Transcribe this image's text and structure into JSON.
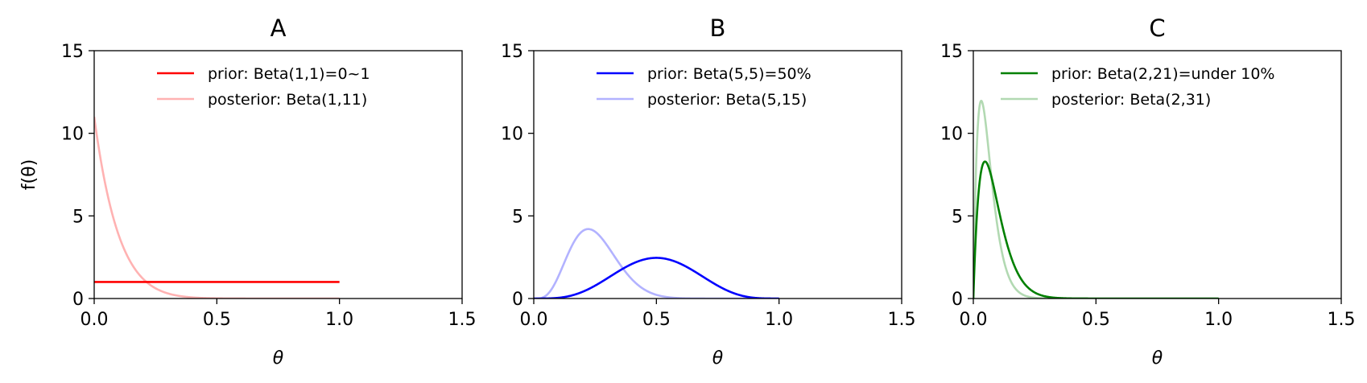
{
  "chart_data": [
    {
      "type": "line",
      "title": "A",
      "xlabel": "θ",
      "ylabel": "f(θ)",
      "xlim": [
        0,
        1.5
      ],
      "ylim": [
        0,
        15
      ],
      "xticks": [
        "0.0",
        "0.5",
        "1.0",
        "1.5"
      ],
      "yticks": [
        "0",
        "5",
        "10",
        "15"
      ],
      "grid": false,
      "legend_position": "top-center",
      "series": [
        {
          "name": "prior: Beta(1,1)=0~1",
          "alpha": 1,
          "beta": 1,
          "color": "#ff0000",
          "opacity": 1.0
        },
        {
          "name": "posterior: Beta(1,11)",
          "alpha": 1,
          "beta": 11,
          "color": "#ff0000",
          "opacity": 0.3
        }
      ]
    },
    {
      "type": "line",
      "title": "B",
      "xlabel": "θ",
      "ylabel": "",
      "xlim": [
        0,
        1.5
      ],
      "ylim": [
        0,
        15
      ],
      "xticks": [
        "0.0",
        "0.5",
        "1.0",
        "1.5"
      ],
      "yticks": [
        "0",
        "5",
        "10",
        "15"
      ],
      "grid": false,
      "legend_position": "top-center",
      "series": [
        {
          "name": "prior: Beta(5,5)=50%",
          "alpha": 5,
          "beta": 5,
          "color": "#0000ff",
          "opacity": 1.0
        },
        {
          "name": "posterior: Beta(5,15)",
          "alpha": 5,
          "beta": 15,
          "color": "#0000ff",
          "opacity": 0.3
        }
      ]
    },
    {
      "type": "line",
      "title": "C",
      "xlabel": "θ",
      "ylabel": "",
      "xlim": [
        0,
        1.5
      ],
      "ylim": [
        0,
        15
      ],
      "xticks": [
        "0.0",
        "0.5",
        "1.0",
        "1.5"
      ],
      "yticks": [
        "0",
        "5",
        "10",
        "15"
      ],
      "grid": false,
      "legend_position": "top-center",
      "series": [
        {
          "name": "prior: Beta(2,21)=under 10%",
          "alpha": 2,
          "beta": 21,
          "color": "#008000",
          "opacity": 1.0
        },
        {
          "name": "posterior: Beta(2,31)",
          "alpha": 2,
          "beta": 31,
          "color": "#008000",
          "opacity": 0.3
        }
      ]
    }
  ]
}
